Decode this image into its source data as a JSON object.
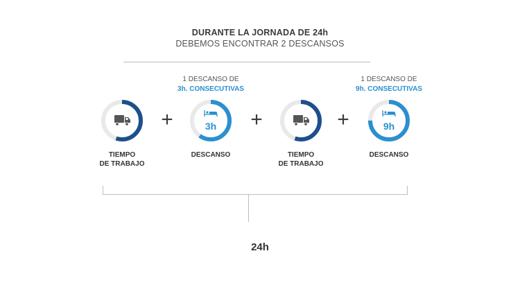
{
  "header": {
    "title": "DURANTE LA JORNADA DE 24h",
    "subtitle": "DEBEMOS ENCONTRAR 2 DESCANSOS"
  },
  "colors": {
    "dark_blue": "#1f4e8c",
    "light_blue": "#2b8fd0",
    "track_gray": "#e9e9e9",
    "icon_gray": "#555555"
  },
  "steps": [
    {
      "type": "work",
      "icon": "truck-icon",
      "label_line1": "TIEMPO",
      "label_line2": "DE TRABAJO",
      "fill_fraction": 0.55
    },
    {
      "type": "rest",
      "icon": "bed-icon",
      "ring_value": "3h",
      "label_line1": "DESCANSO",
      "label_line2": "",
      "note_line1": "1 DESCANSO DE",
      "note_line2": "3h. CONSECUTIVAS",
      "fill_fraction": 0.6
    },
    {
      "type": "work",
      "icon": "truck-icon",
      "label_line1": "TIEMPO",
      "label_line2": "DE TRABAJO",
      "fill_fraction": 0.55
    },
    {
      "type": "rest",
      "icon": "bed-icon",
      "ring_value": "9h",
      "label_line1": "DESCANSO",
      "label_line2": "",
      "note_line1": "1 DESCANSO DE",
      "note_line2": "9h. CONSECUTIVAS",
      "fill_fraction": 0.75
    }
  ],
  "operators": [
    "+",
    "+",
    "+"
  ],
  "total": "24h"
}
